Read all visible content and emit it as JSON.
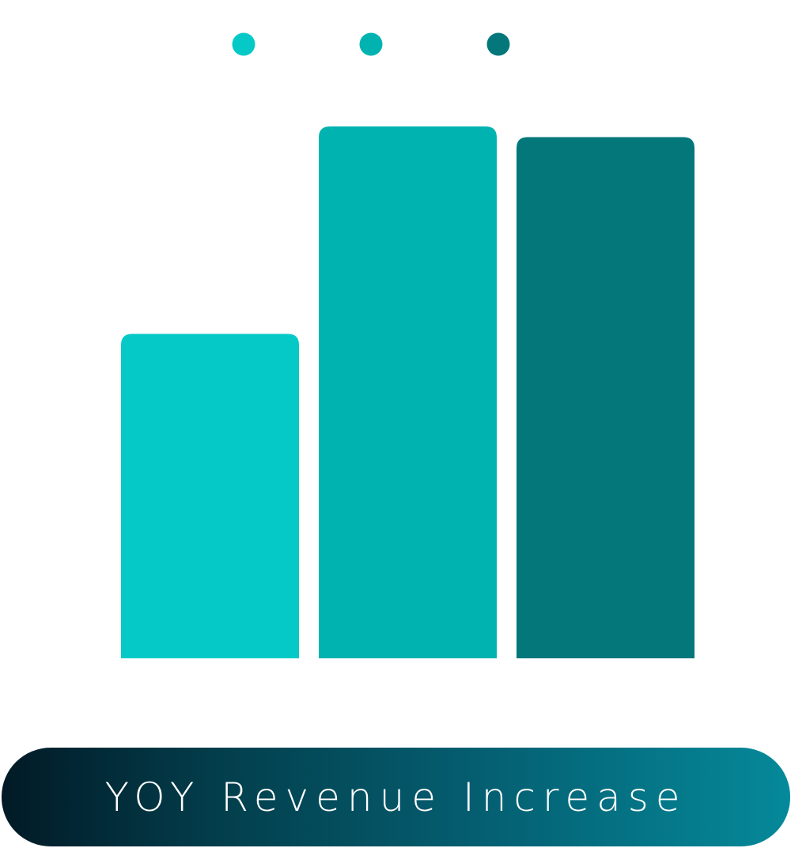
{
  "caption": {
    "text": "YOY Revenue Increase"
  },
  "chart_data": {
    "type": "bar",
    "title": "YOY Revenue Increase",
    "xlabel": "",
    "ylabel": "",
    "grid": false,
    "legend": "top-center",
    "ylim": [
      0,
      100
    ],
    "categories": [
      "",
      "",
      ""
    ],
    "values": [
      61,
      100,
      98
    ],
    "colors": [
      "#05c9c7",
      "#00b3b0",
      "#04777b"
    ]
  }
}
